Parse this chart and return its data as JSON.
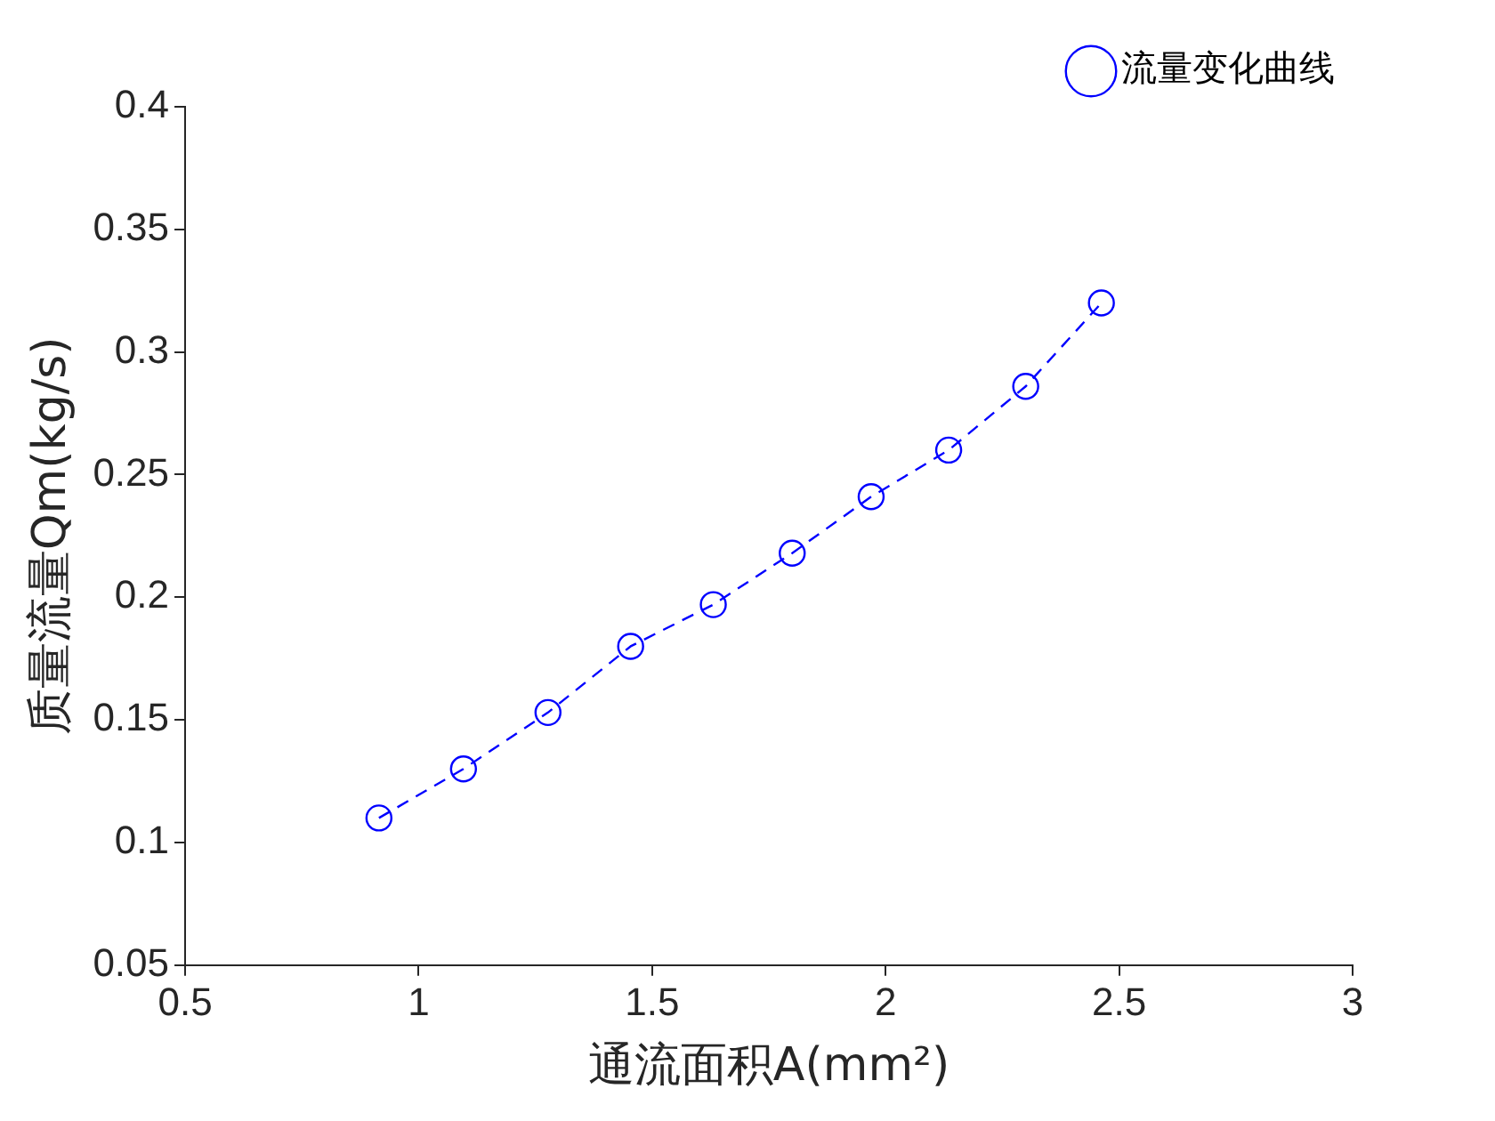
{
  "chart_data": {
    "type": "line",
    "xlabel": "通流面积A(mm²)",
    "ylabel": "质量流量Qm(kg/s)",
    "xlim": [
      0.5,
      3
    ],
    "xticks": [
      0.5,
      1,
      1.5,
      2,
      2.5,
      3
    ],
    "ylim": [
      0.05,
      0.4
    ],
    "yticks": [
      0.05,
      0.1,
      0.15,
      0.2,
      0.25,
      0.3,
      0.35,
      0.4
    ],
    "series": [
      {
        "name": "流量变化曲线",
        "color": "#0000ff",
        "x": [
          0.915,
          1.096,
          1.277,
          1.454,
          1.631,
          1.8,
          1.969,
          2.135,
          2.3,
          2.462
        ],
        "values": [
          0.11,
          0.13,
          0.153,
          0.18,
          0.197,
          0.218,
          0.241,
          0.26,
          0.286,
          0.32
        ]
      }
    ],
    "marker": "circle",
    "line_style": "dashed",
    "legend": "top right",
    "grid": false
  }
}
